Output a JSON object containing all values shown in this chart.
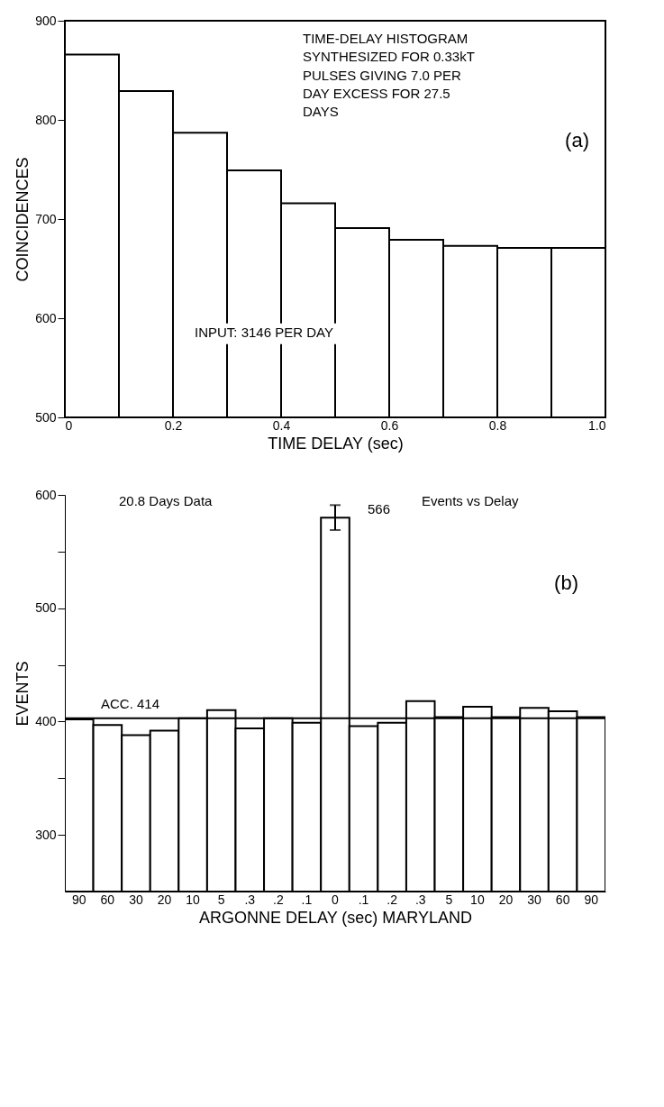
{
  "chart_data": [
    {
      "type": "histogram",
      "ylabel": "COINCIDENCES",
      "xlabel": "TIME DELAY (sec)",
      "bins": [
        0,
        0.1,
        0.2,
        0.3,
        0.4,
        0.5,
        0.6,
        0.7,
        0.8,
        0.9,
        1.0
      ],
      "values": [
        866,
        829,
        787,
        749,
        716,
        691,
        679,
        673,
        671,
        671
      ],
      "color": "#ffffff",
      "xlim": [
        0,
        1
      ],
      "xticks": [
        0,
        0.2,
        0.4,
        0.6,
        0.8,
        {
          "value": 1,
          "label": "1.0"
        }
      ],
      "ylim": [
        500,
        900
      ],
      "yticks": [
        500,
        600,
        700,
        800,
        900
      ],
      "annotations": [
        "TIME-DELAY HISTOGRAM\nSYNTHESIZED FOR 0.33kT\nPULSES GIVING 7.0 PER\nDAY EXCESS FOR 27.5\nDAYS",
        "(a)",
        "INPUT: 3146 PER DAY"
      ]
    },
    {
      "type": "bar",
      "ylabel": "EVENTS",
      "xlabel": "ARGONNE     DELAY (sec)     MARYLAND",
      "categories": [
        "90",
        "60",
        "30",
        "20",
        "10",
        "5",
        ".3",
        ".2",
        ".1",
        "0",
        ".1",
        ".2",
        ".3",
        "5",
        "10",
        "20",
        "30",
        "60",
        "90"
      ],
      "values": [
        402,
        397,
        388,
        392,
        403,
        410,
        394,
        403,
        399,
        580,
        396,
        399,
        418,
        404,
        413,
        404,
        412,
        409,
        404
      ],
      "errors": [
        null,
        null,
        null,
        null,
        null,
        null,
        null,
        null,
        null,
        11,
        null,
        null,
        null,
        null,
        null,
        null,
        null,
        null,
        null
      ],
      "color": "#ffffff",
      "ylim": [
        250,
        600
      ],
      "yticks": [
        300,
        {
          "value": 350,
          "label": null
        },
        400,
        {
          "value": 450,
          "label": null
        },
        500,
        {
          "value": 550,
          "label": null
        },
        600
      ],
      "ref_lines": [
        {
          "axis": "y",
          "value": 403,
          "label": "ACC. 414"
        }
      ],
      "annotations": [
        "20.8 Days Data",
        "566",
        "Events vs Delay",
        "(b)"
      ]
    }
  ]
}
